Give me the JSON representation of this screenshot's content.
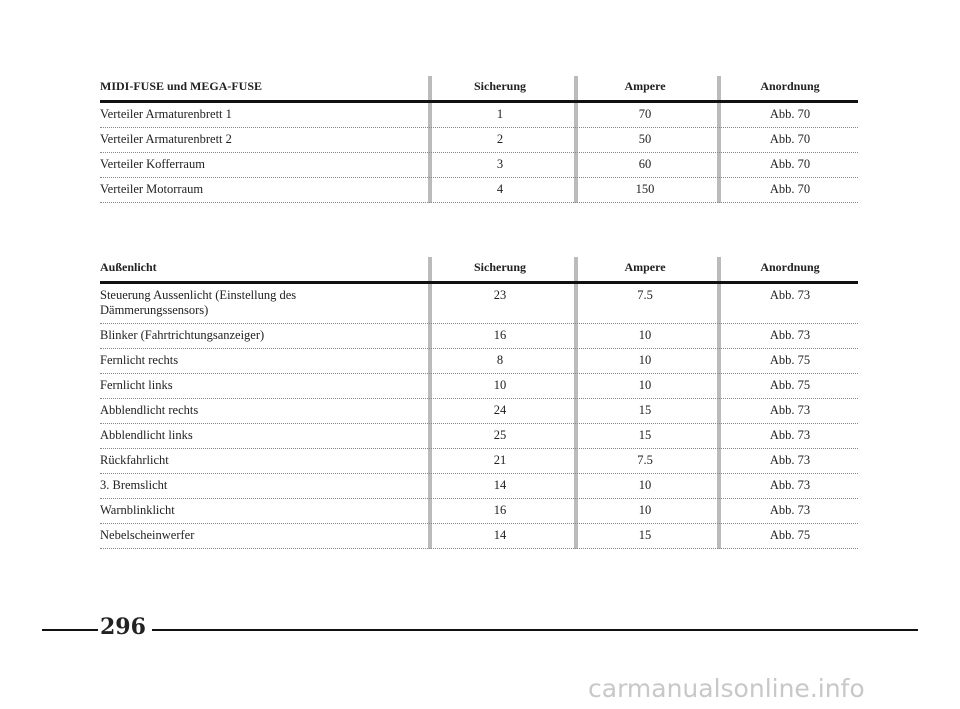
{
  "tables": [
    {
      "header": [
        "MIDI-FUSE und MEGA-FUSE",
        "Sicherung",
        "Ampere",
        "Anordnung"
      ],
      "rows": [
        [
          "Verteiler Armaturenbrett 1",
          "1",
          "70",
          "Abb. 70"
        ],
        [
          "Verteiler Armaturenbrett 2",
          "2",
          "50",
          "Abb. 70"
        ],
        [
          "Verteiler Kofferraum",
          "3",
          "60",
          "Abb. 70"
        ],
        [
          "Verteiler Motorraum",
          "4",
          "150",
          "Abb. 70"
        ]
      ]
    },
    {
      "header": [
        "Außenlicht",
        "Sicherung",
        "Ampere",
        "Anordnung"
      ],
      "rows": [
        [
          "Steuerung Aussenlicht (Einstellung des Dämmerungssensors)",
          "23",
          "7.5",
          "Abb. 73"
        ],
        [
          "Blinker (Fahrtrichtungsanzeiger)",
          "16",
          "10",
          "Abb. 73"
        ],
        [
          "Fernlicht rechts",
          "8",
          "10",
          "Abb. 75"
        ],
        [
          "Fernlicht links",
          "10",
          "10",
          "Abb. 75"
        ],
        [
          "Abblendlicht rechts",
          "24",
          "15",
          "Abb. 73"
        ],
        [
          "Abblendlicht links",
          "25",
          "15",
          "Abb. 73"
        ],
        [
          "Rückfahrlicht",
          "21",
          "7.5",
          "Abb. 73"
        ],
        [
          "3. Bremslicht",
          "14",
          "10",
          "Abb. 73"
        ],
        [
          "Warnblinklicht",
          "16",
          "10",
          "Abb. 73"
        ],
        [
          "Nebelscheinwerfer",
          "14",
          "15",
          "Abb. 75"
        ]
      ]
    }
  ],
  "page_number": "296",
  "watermark": "carmanualsonline.info"
}
